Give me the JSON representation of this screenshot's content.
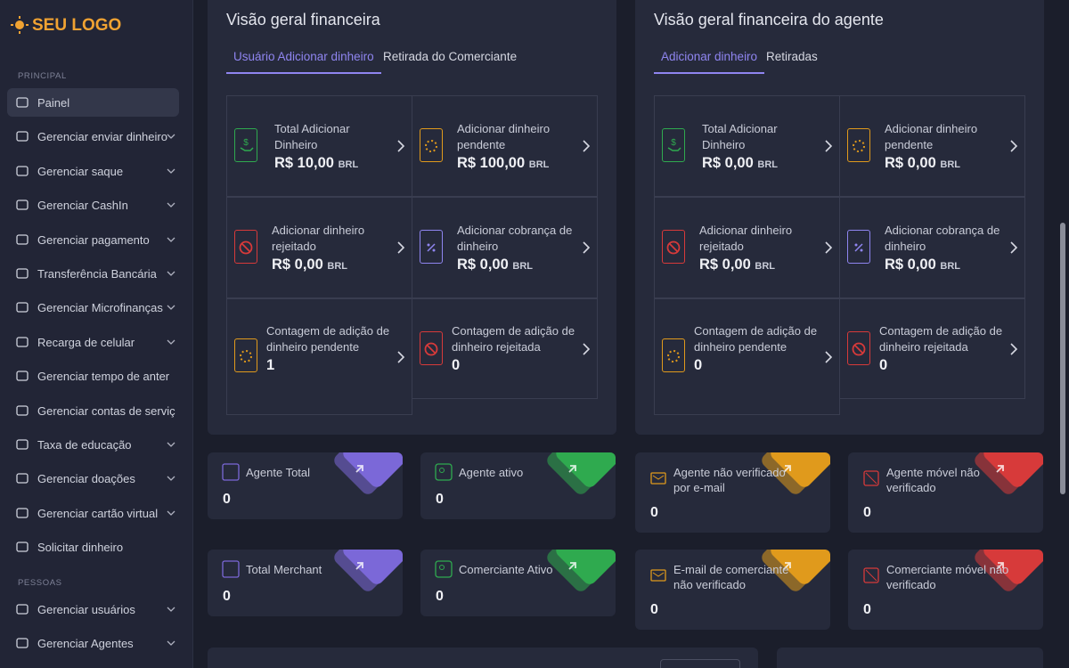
{
  "logo": "SEU LOGO",
  "sidebar": {
    "sections": [
      {
        "heading": "PRINCIPAL",
        "items": [
          {
            "label": "Painel",
            "submenu": false
          },
          {
            "label": "Gerenciar enviar dinheiro",
            "submenu": true
          },
          {
            "label": "Gerenciar saque",
            "submenu": true
          },
          {
            "label": "Gerenciar CashIn",
            "submenu": true
          },
          {
            "label": "Gerenciar pagamento",
            "submenu": true
          },
          {
            "label": "Transferência Bancária",
            "submenu": true
          },
          {
            "label": "Gerenciar Microfinanças",
            "submenu": true
          },
          {
            "label": "Recarga de celular",
            "submenu": true
          },
          {
            "label": "Gerenciar tempo de anter",
            "submenu": false
          },
          {
            "label": "Gerenciar contas de serviç",
            "submenu": false
          },
          {
            "label": "Taxa de educação",
            "submenu": true
          },
          {
            "label": "Gerenciar doações",
            "submenu": true
          },
          {
            "label": "Gerenciar cartão virtual",
            "submenu": true
          },
          {
            "label": "Solicitar dinheiro",
            "submenu": false
          }
        ]
      },
      {
        "heading": "PESSOAS",
        "items": [
          {
            "label": "Gerenciar usuários",
            "submenu": true
          },
          {
            "label": "Gerenciar Agentes",
            "submenu": true
          }
        ]
      }
    ]
  },
  "panels": [
    {
      "title": "Visão geral financeira",
      "tabs": [
        "Usuário Adicionar dinheiro",
        "Retirada do Comerciante"
      ],
      "cards": [
        {
          "label": "Total Adicionar Dinheiro",
          "amount": "R$ 10,00",
          "currency": "BRL"
        },
        {
          "label": "Adicionar dinheiro pendente",
          "amount": "R$ 100,00",
          "currency": "BRL"
        },
        {
          "label": "Adicionar dinheiro rejeitado",
          "amount": "R$ 0,00",
          "currency": "BRL"
        },
        {
          "label": "Adicionar cobrança de dinheiro",
          "amount": "R$ 0,00",
          "currency": "BRL"
        },
        {
          "label": "Contagem de adição de dinheiro pendente",
          "count": 1
        },
        {
          "label": "Contagem de adição de dinheiro rejeitada",
          "count": 0
        }
      ]
    },
    {
      "title": "Visão geral financeira do agente",
      "tabs": [
        "Adicionar dinheiro",
        "Retiradas"
      ],
      "cards": [
        {
          "label": "Total Adicionar Dinheiro",
          "amount": "R$ 0,00",
          "currency": "BRL"
        },
        {
          "label": "Adicionar dinheiro pendente",
          "amount": "R$ 0,00",
          "currency": "BRL"
        },
        {
          "label": "Adicionar dinheiro rejeitado",
          "amount": "R$ 0,00",
          "currency": "BRL"
        },
        {
          "label": "Adicionar cobrança de dinheiro",
          "amount": "R$ 0,00",
          "currency": "BRL"
        },
        {
          "label": "Contagem de adição de dinheiro pendente",
          "count": 0
        },
        {
          "label": "Contagem de adição de dinheiro rejeitada",
          "count": 0
        }
      ]
    }
  ],
  "stats": [
    {
      "label": "Agente Total",
      "value": 0,
      "color": "#7b68d8"
    },
    {
      "label": "Agente ativo",
      "value": 0,
      "color": "#2faa4f"
    },
    {
      "label": "Agente não verificado por e-mail",
      "value": 0,
      "color": "#e09a1c"
    },
    {
      "label": "Agente móvel não verificado",
      "value": 0,
      "color": "#d73a3a"
    },
    {
      "label": "Total Merchant",
      "value": 0,
      "color": "#7b68d8"
    },
    {
      "label": "Comerciante Ativo",
      "value": 0,
      "color": "#2faa4f"
    },
    {
      "label": "E-mail de comerciante não verificado",
      "value": 0,
      "color": "#e09a1c"
    },
    {
      "label": "Comerciante móvel não verificado",
      "value": 0,
      "color": "#d73a3a"
    }
  ]
}
